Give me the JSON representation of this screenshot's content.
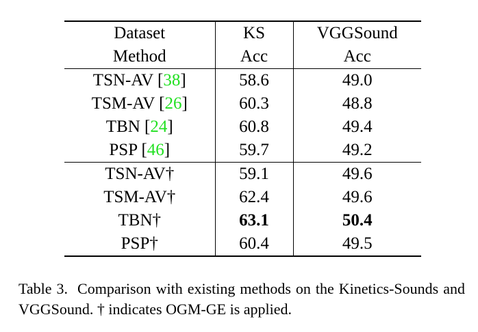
{
  "table": {
    "header1": {
      "col1": "Dataset",
      "col2": "KS",
      "col3": "VGGSound"
    },
    "header2": {
      "col1": "Method",
      "col2": "Acc",
      "col3": "Acc"
    },
    "group1": [
      {
        "method": "TSN-AV [",
        "ref": "38",
        "close": "]",
        "ks": "58.6",
        "vgg": "49.0"
      },
      {
        "method": "TSM-AV [",
        "ref": "26",
        "close": "]",
        "ks": "60.3",
        "vgg": "48.8"
      },
      {
        "method": "TBN [",
        "ref": "24",
        "close": "]",
        "ks": "60.8",
        "vgg": "49.4"
      },
      {
        "method": "PSP [",
        "ref": "46",
        "close": "]",
        "ks": "59.7",
        "vgg": "49.2"
      }
    ],
    "group2": [
      {
        "method": "TSN-AV†",
        "ks": "59.1",
        "vgg": "49.6"
      },
      {
        "method": "TSM-AV†",
        "ks": "62.4",
        "vgg": "49.6"
      },
      {
        "method": "TBN†",
        "ks": "63.1",
        "vgg": "50.4"
      },
      {
        "method": "PSP†",
        "ks": "60.4",
        "vgg": "49.5"
      }
    ]
  },
  "caption": {
    "label": "Table 3.",
    "text": "Comparison with existing methods on the Kinetics-Sounds and VGGSound. † indicates OGM-GE is applied."
  }
}
